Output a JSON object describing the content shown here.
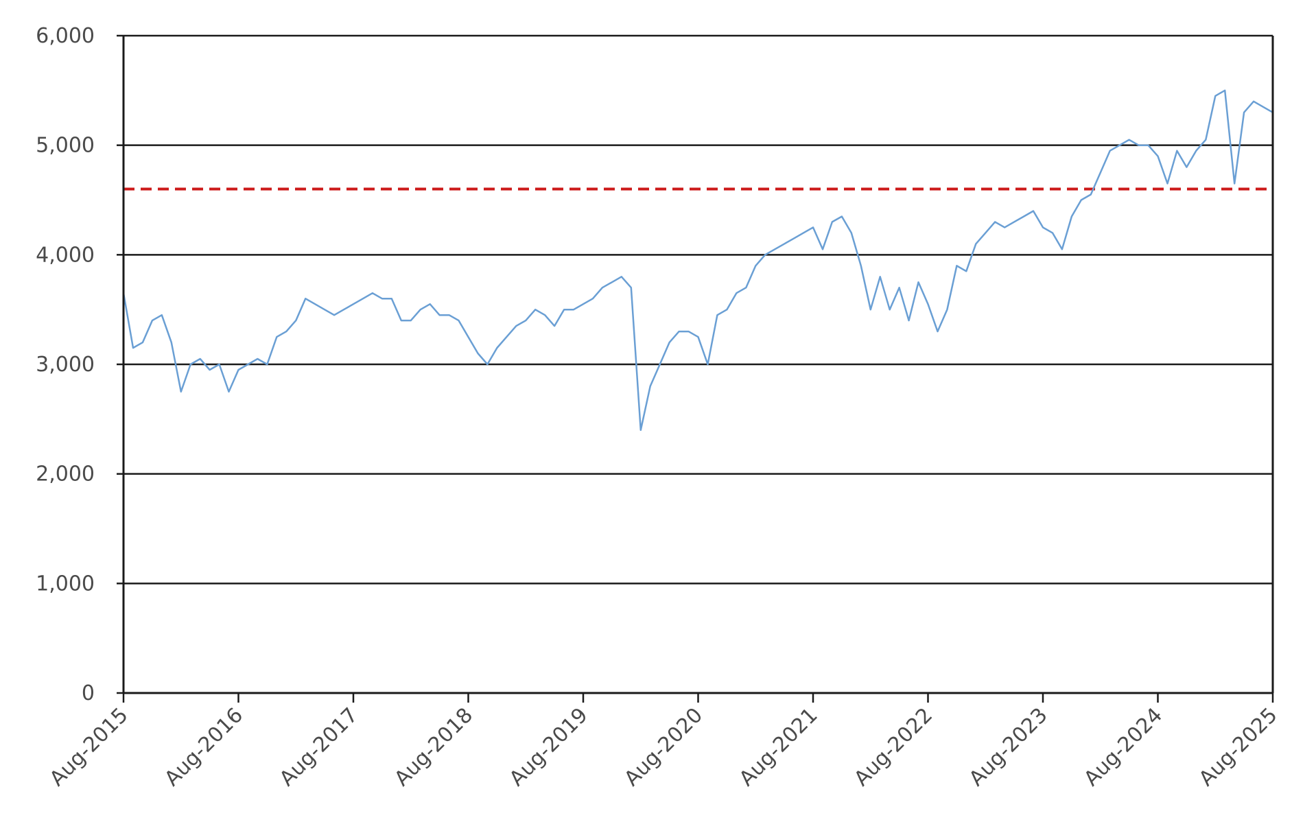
{
  "chart_data": {
    "type": "line",
    "title": "",
    "xlabel": "",
    "ylabel": "",
    "xlim": [
      "Aug-2015",
      "Aug-2025"
    ],
    "ylim": [
      0,
      6000
    ],
    "grid": true,
    "legend": "none",
    "x_tick_labels": [
      "Aug-2015",
      "Aug-2016",
      "Aug-2017",
      "Aug-2018",
      "Aug-2019",
      "Aug-2020",
      "Aug-2021",
      "Aug-2022",
      "Aug-2023",
      "Aug-2024",
      "Aug-2025"
    ],
    "y_ticks": [
      0,
      1000,
      2000,
      3000,
      4000,
      5000,
      6000
    ],
    "y_tick_labels": [
      "0",
      "1,000",
      "2,000",
      "3,000",
      "4,000",
      "5,000",
      "6,000"
    ],
    "reference_line": {
      "y": 4600,
      "color": "#cc1a1a",
      "style": "dashed"
    },
    "series": [
      {
        "color": "#6a9fd4",
        "x": [
          "2015-08",
          "2015-09",
          "2015-10",
          "2015-11",
          "2015-12",
          "2016-01",
          "2016-02",
          "2016-03",
          "2016-04",
          "2016-05",
          "2016-06",
          "2016-07",
          "2016-08",
          "2016-09",
          "2016-10",
          "2016-11",
          "2016-12",
          "2017-01",
          "2017-02",
          "2017-03",
          "2017-04",
          "2017-05",
          "2017-06",
          "2017-07",
          "2017-08",
          "2017-09",
          "2017-10",
          "2017-11",
          "2017-12",
          "2018-01",
          "2018-02",
          "2018-03",
          "2018-04",
          "2018-05",
          "2018-06",
          "2018-07",
          "2018-08",
          "2018-09",
          "2018-10",
          "2018-11",
          "2018-12",
          "2019-01",
          "2019-02",
          "2019-03",
          "2019-04",
          "2019-05",
          "2019-06",
          "2019-07",
          "2019-08",
          "2019-09",
          "2019-10",
          "2019-11",
          "2019-12",
          "2020-01",
          "2020-02",
          "2020-03",
          "2020-04",
          "2020-05",
          "2020-06",
          "2020-07",
          "2020-08",
          "2020-09",
          "2020-10",
          "2020-11",
          "2020-12",
          "2021-01",
          "2021-02",
          "2021-03",
          "2021-04",
          "2021-05",
          "2021-06",
          "2021-07",
          "2021-08",
          "2021-09",
          "2021-10",
          "2021-11",
          "2021-12",
          "2022-01",
          "2022-02",
          "2022-03",
          "2022-04",
          "2022-05",
          "2022-06",
          "2022-07",
          "2022-08",
          "2022-09",
          "2022-10",
          "2022-11",
          "2022-12",
          "2023-01",
          "2023-02",
          "2023-03",
          "2023-04",
          "2023-05",
          "2023-06",
          "2023-07",
          "2023-08",
          "2023-09",
          "2023-10",
          "2023-11",
          "2023-12",
          "2024-01",
          "2024-02",
          "2024-03",
          "2024-04",
          "2024-05",
          "2024-06",
          "2024-07",
          "2024-08",
          "2024-09",
          "2024-10",
          "2024-11",
          "2024-12",
          "2025-01",
          "2025-02",
          "2025-03",
          "2025-04",
          "2025-05",
          "2025-06",
          "2025-07",
          "2025-08"
        ],
        "values": [
          3650,
          3150,
          3200,
          3400,
          3450,
          3200,
          2750,
          3000,
          3050,
          2950,
          3000,
          2750,
          2950,
          3000,
          3050,
          3000,
          3250,
          3300,
          3400,
          3600,
          3550,
          3500,
          3450,
          3500,
          3550,
          3600,
          3650,
          3600,
          3600,
          3400,
          3400,
          3500,
          3550,
          3450,
          3450,
          3400,
          3250,
          3100,
          3000,
          3150,
          3250,
          3350,
          3400,
          3500,
          3450,
          3350,
          3500,
          3500,
          3550,
          3600,
          3700,
          3750,
          3800,
          3700,
          2400,
          2800,
          3000,
          3200,
          3300,
          3300,
          3250,
          3000,
          3450,
          3500,
          3650,
          3700,
          3900,
          4000,
          4050,
          4100,
          4150,
          4200,
          4250,
          4050,
          4300,
          4350,
          4200,
          3900,
          3500,
          3800,
          3500,
          3700,
          3400,
          3750,
          3550,
          3300,
          3500,
          3900,
          3850,
          4100,
          4200,
          4300,
          4250,
          4300,
          4350,
          4400,
          4250,
          4200,
          4050,
          4350,
          4500,
          4550,
          4750,
          4950,
          5000,
          5050,
          5000,
          5000,
          4900,
          4650,
          4950,
          4800,
          4950,
          5050,
          5450,
          5500,
          4650,
          5300,
          5400,
          5350,
          5300
        ]
      }
    ]
  }
}
